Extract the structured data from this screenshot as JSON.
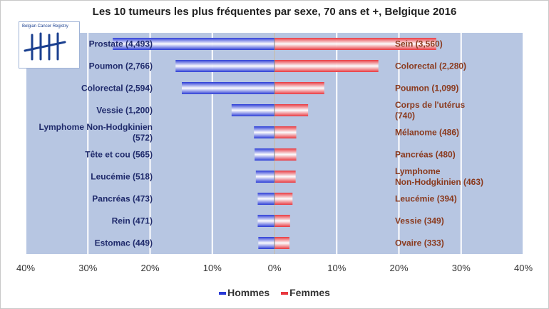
{
  "colors": {
    "plot_bg": "#b7c6e2",
    "male": "#2a3bd6",
    "female": "#e8383f",
    "male_label": "#1f2a6b",
    "female_label": "#8a3a1e",
    "gridline": "#ffffff"
  },
  "logo": {
    "text": "Belgian Cancer Registry",
    "icon": "tally-marks-logo-icon"
  },
  "chart_data": {
    "type": "bar",
    "orientation": "horizontal-butterfly",
    "title": "Les 10 tumeurs les plus fréquentes par sexe, 70 ans et +,  Belgique 2016",
    "xlim": [
      -40,
      40
    ],
    "x_ticks": [
      {
        "value": -40,
        "label": "40%"
      },
      {
        "value": -30,
        "label": "30%"
      },
      {
        "value": -20,
        "label": "20%"
      },
      {
        "value": -10,
        "label": "10%"
      },
      {
        "value": 0,
        "label": "0%"
      },
      {
        "value": 10,
        "label": "10%"
      },
      {
        "value": 20,
        "label": "20%"
      },
      {
        "value": 30,
        "label": "30%"
      },
      {
        "value": 40,
        "label": "40%"
      }
    ],
    "grid": true,
    "legend_position": "bottom",
    "series": [
      {
        "name": "Hommes",
        "side": "left",
        "labels": [
          "Prostate (4,493)",
          "Poumon (2,766)",
          "Colorectal (2,594)",
          "Vessie (1,200)",
          "Lymphome Non-Hodgkinien (572)",
          "Tête et cou (565)",
          "Leucémie (518)",
          "Pancréas (473)",
          "Rein (471)",
          "Estomac (449)"
        ],
        "values": [
          26.0,
          15.9,
          14.9,
          6.9,
          3.3,
          3.2,
          3.0,
          2.7,
          2.7,
          2.6
        ]
      },
      {
        "name": "Femmes",
        "side": "right",
        "labels": [
          "Sein (3,560)",
          "Colorectal (2,280)",
          "Poumon (1,099)",
          "Corps de l'utérus (740)",
          "Mélanome (486)",
          "Pancréas (480)",
          "Lymphome Non-Hodgkinien (463)",
          "Leucémie (394)",
          "Vessie (349)",
          "Ovaire (333)"
        ],
        "values": [
          26.0,
          16.7,
          8.0,
          5.4,
          3.5,
          3.5,
          3.4,
          2.9,
          2.5,
          2.4
        ]
      }
    ]
  }
}
